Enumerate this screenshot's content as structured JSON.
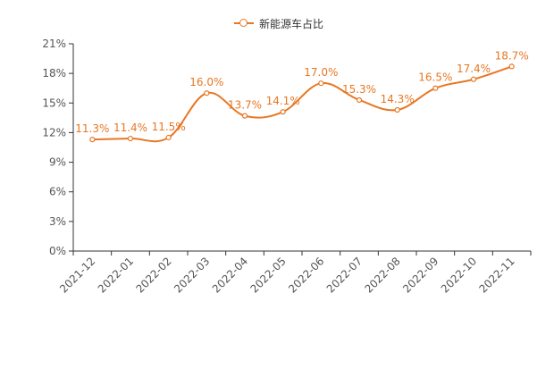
{
  "chart_data": {
    "type": "line",
    "categories": [
      "2021-12",
      "2022-01",
      "2022-02",
      "2022-03",
      "2022-04",
      "2022-05",
      "2022-06",
      "2022-07",
      "2022-08",
      "2022-09",
      "2022-10",
      "2022-11"
    ],
    "series": [
      {
        "name": "新能源车占比",
        "values": [
          11.3,
          11.4,
          11.5,
          16.0,
          13.7,
          14.1,
          17.0,
          15.3,
          14.3,
          16.5,
          17.4,
          18.7
        ],
        "labels": [
          "11.3%",
          "11.4%",
          "11.5%",
          "16.0%",
          "13.7%",
          "14.1%",
          "17.0%",
          "15.3%",
          "14.3%",
          "16.5%",
          "17.4%",
          "18.7%"
        ],
        "color": "#e87722"
      }
    ],
    "ylim": [
      0,
      21
    ],
    "yticks": [
      0,
      3,
      6,
      9,
      12,
      15,
      18,
      21
    ],
    "ytick_labels": [
      "0%",
      "3%",
      "6%",
      "9%",
      "12%",
      "15%",
      "18%",
      "21%"
    ],
    "legend_position": "top-center",
    "grid": false,
    "smooth": true,
    "colors": {
      "line": "#e87722",
      "axis": "#333333",
      "text": "#555555"
    }
  }
}
